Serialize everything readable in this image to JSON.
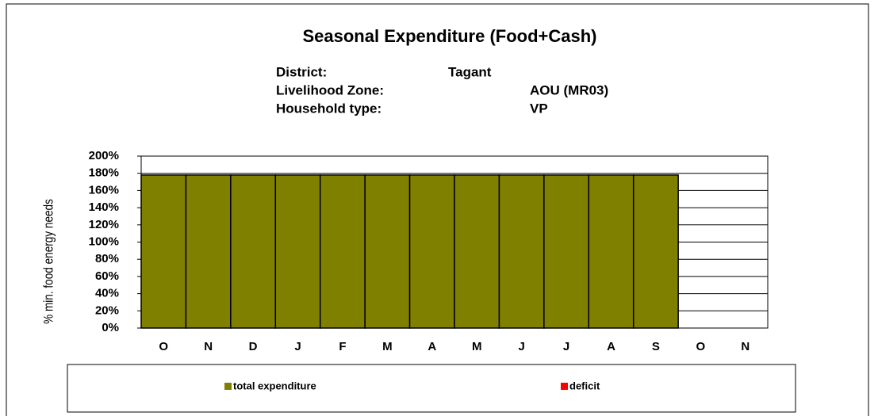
{
  "chart_data": {
    "type": "bar",
    "title": "Seasonal Expenditure (Food+Cash)",
    "info": [
      [
        "District:",
        "Tagant"
      ],
      [
        "Livelihood Zone:",
        "AOU (MR03)"
      ],
      [
        "Household type:",
        "VP"
      ]
    ],
    "ylabel": "% min. food energy needs",
    "categories": [
      "O",
      "N",
      "D",
      "J",
      "F",
      "M",
      "A",
      "M",
      "J",
      "J",
      "A",
      "S",
      "O",
      "N"
    ],
    "series": [
      {
        "name": "total expenditure",
        "color": "#808000",
        "values": [
          178,
          178,
          178,
          178,
          178,
          178,
          178,
          178,
          178,
          178,
          178,
          178,
          null,
          null
        ]
      },
      {
        "name": "deficit",
        "color": "#ff0000",
        "values": [
          0,
          0,
          0,
          0,
          0,
          0,
          0,
          0,
          0,
          0,
          0,
          0,
          null,
          null
        ]
      }
    ],
    "stacked": true,
    "ylim": [
      0,
      200
    ],
    "yticks": [
      {
        "value": 0,
        "label": "0%"
      },
      {
        "value": 20,
        "label": "20%"
      },
      {
        "value": 40,
        "label": "40%"
      },
      {
        "value": 60,
        "label": "60%"
      },
      {
        "value": 80,
        "label": "80%"
      },
      {
        "value": 100,
        "label": "100%"
      },
      {
        "value": 120,
        "label": "120%"
      },
      {
        "value": 140,
        "label": "140%"
      },
      {
        "value": 160,
        "label": "160%"
      },
      {
        "value": 180,
        "label": "180%"
      },
      {
        "value": 200,
        "label": "200%"
      }
    ],
    "grid": true,
    "legend": "bottom"
  }
}
